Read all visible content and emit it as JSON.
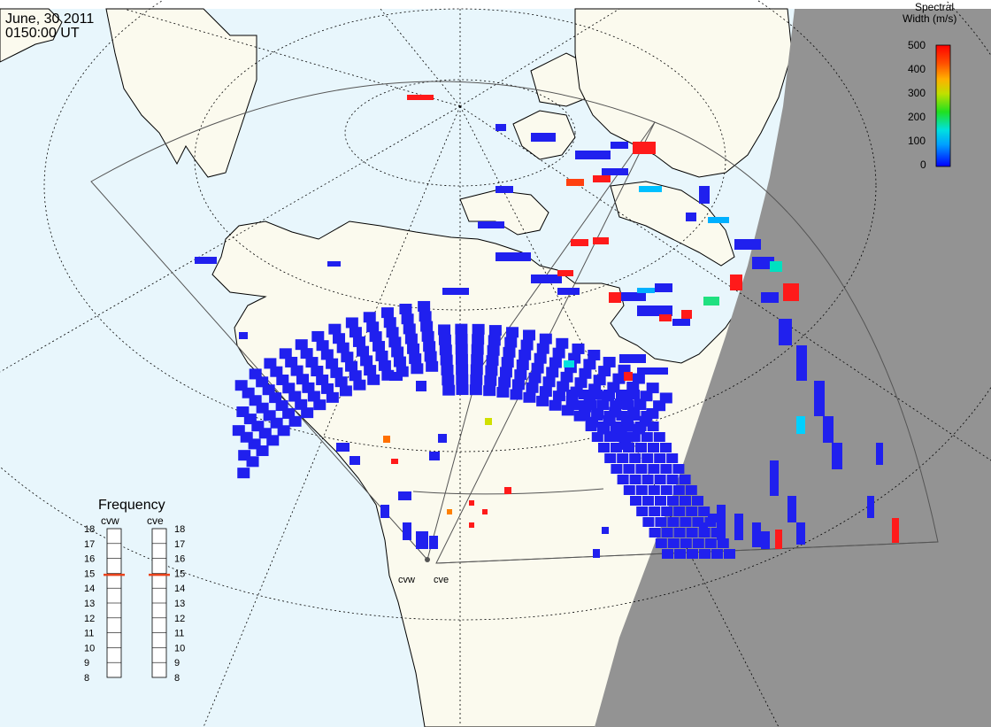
{
  "header": {
    "date": "June, 30 2011",
    "time": "0150:00 UT"
  },
  "colorbar": {
    "title_line1": "Spectral",
    "title_line2": "Width (m/s)",
    "ticks": [
      "500",
      "400",
      "300",
      "200",
      "100",
      "0"
    ]
  },
  "frequency_panel": {
    "title": "Frequency",
    "radars": [
      {
        "name": "cvw",
        "value_mhz": 14.9
      },
      {
        "name": "cve",
        "value_mhz": 14.9
      }
    ],
    "scale_labels": [
      "18",
      "17",
      "16",
      "15",
      "14",
      "13",
      "12",
      "11",
      "10",
      "9",
      "8"
    ],
    "indicator_color": "#e8431c"
  },
  "stations": {
    "cvw": "cvw",
    "cve": "cve"
  },
  "colors": {
    "ocean": "#e8f6fc",
    "land": "#fbfaee",
    "night": "#939393",
    "low_width": "#2020ee",
    "high_width": "#ff1a1a"
  }
}
